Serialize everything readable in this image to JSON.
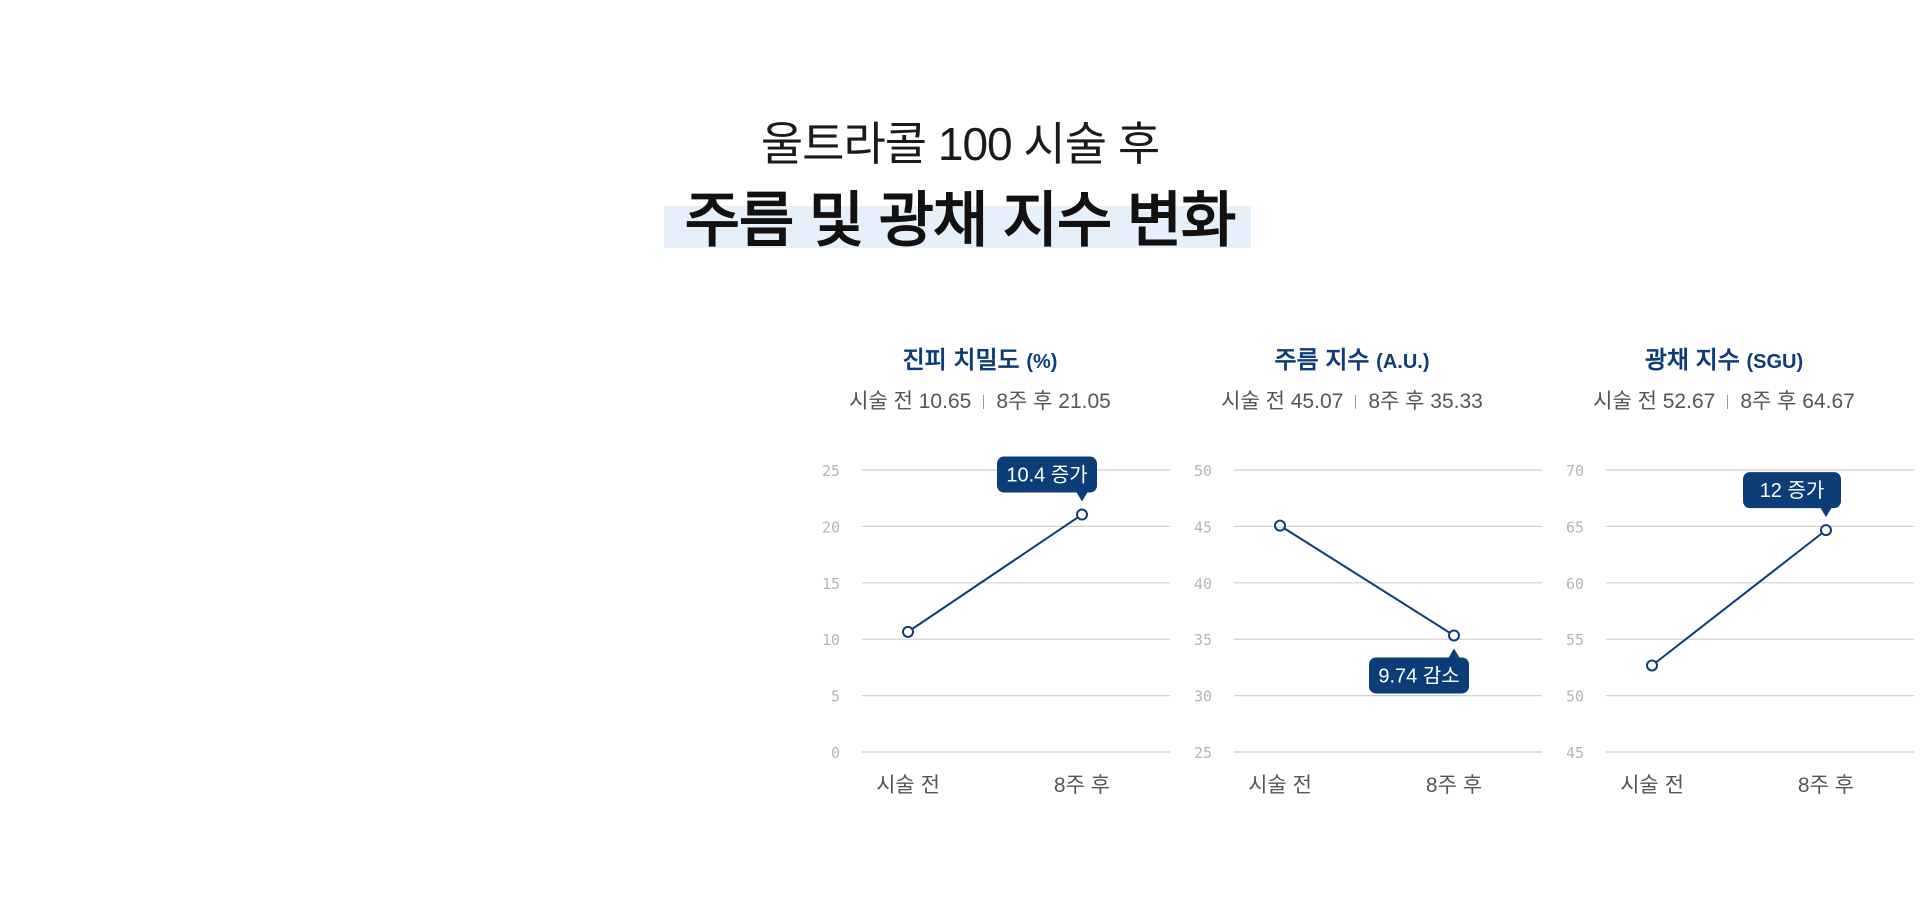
{
  "header": {
    "subtitle": "울트라콜 100 시술 후",
    "title": "주름 및 광채 지수 변화"
  },
  "chart_data": [
    {
      "type": "line",
      "title": "진피 치밀도",
      "unit": "(%)",
      "summary": {
        "before": "시술 전 10.65",
        "after": "8주 후 21.05"
      },
      "categories": [
        "시술 전",
        "8주 후"
      ],
      "values": [
        10.65,
        21.05
      ],
      "ylim": [
        0,
        25
      ],
      "yticks": [
        0,
        5,
        10,
        15,
        20,
        25
      ],
      "grid": true,
      "annotation": {
        "text": "10.4 증가",
        "point": 1,
        "position": "above"
      },
      "color": "#0c3d78"
    },
    {
      "type": "line",
      "title": "주름 지수",
      "unit": "(A.U.)",
      "summary": {
        "before": "시술 전 45.07",
        "after": "8주 후 35.33"
      },
      "categories": [
        "시술 전",
        "8주 후"
      ],
      "values": [
        45.07,
        35.33
      ],
      "ylim": [
        25,
        50
      ],
      "yticks": [
        25,
        30,
        35,
        40,
        45,
        50
      ],
      "grid": true,
      "annotation": {
        "text": "9.74 감소",
        "point": 1,
        "position": "below"
      },
      "color": "#0c3d78"
    },
    {
      "type": "line",
      "title": "광채 지수",
      "unit": "(SGU)",
      "summary": {
        "before": "시술 전 52.67",
        "after": "8주 후 64.67"
      },
      "categories": [
        "시술 전",
        "8주 후"
      ],
      "values": [
        52.67,
        64.67
      ],
      "ylim": [
        45,
        70
      ],
      "yticks": [
        45,
        50,
        55,
        60,
        65,
        70
      ],
      "grid": true,
      "annotation": {
        "text": "12 증가",
        "point": 1,
        "position": "above"
      },
      "color": "#0c3d78"
    }
  ]
}
